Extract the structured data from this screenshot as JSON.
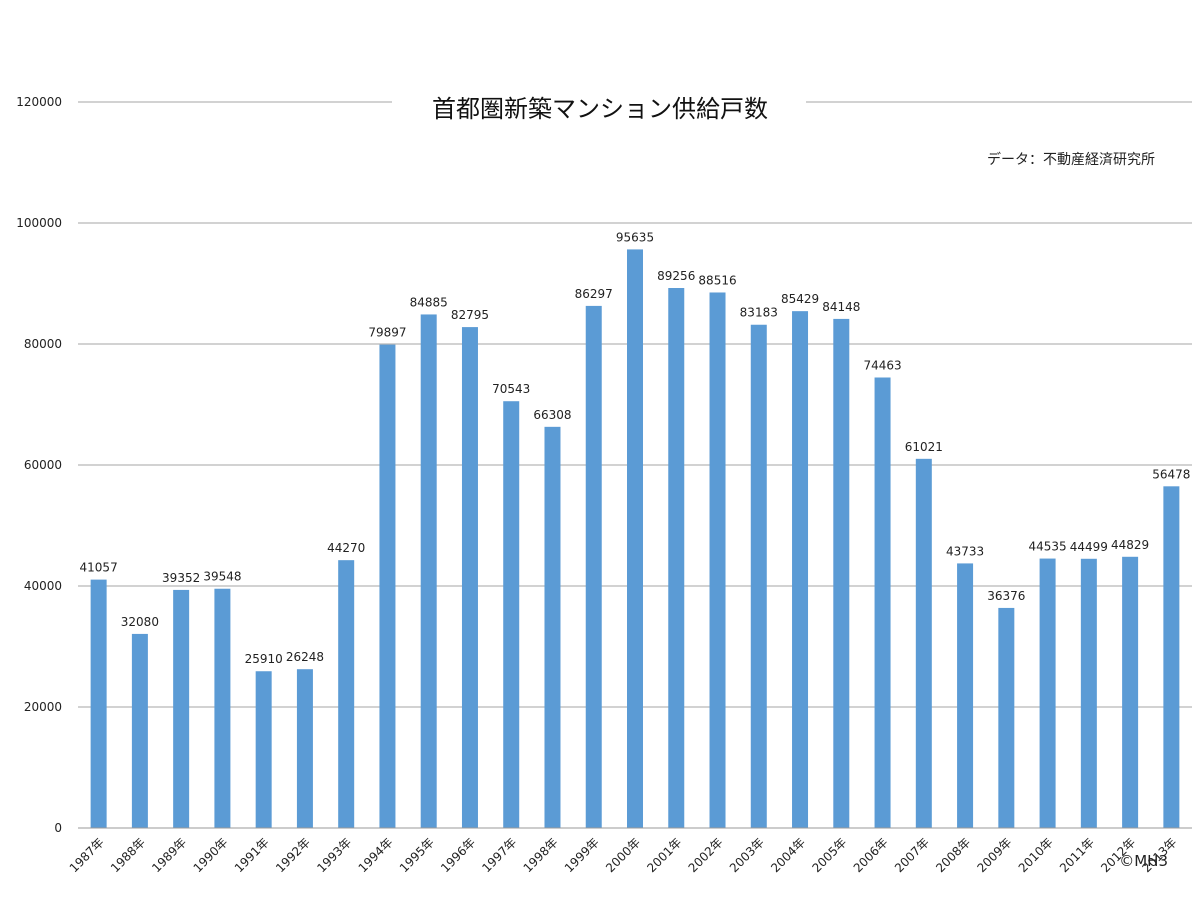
{
  "chart_data": {
    "type": "bar",
    "title": "首都圏新築マンション供給戸数",
    "source": "データ：不動産経済研究所",
    "copyright": "©MH3",
    "ylim": [
      0,
      120000
    ],
    "yticks": [
      "0",
      "20000",
      "40000",
      "60000",
      "80000",
      "100000",
      "120000"
    ],
    "grid": true,
    "bar_color": "#5b9bd5",
    "categories": [
      "1987年",
      "1988年",
      "1989年",
      "1990年",
      "1991年",
      "1992年",
      "1993年",
      "1994年",
      "1995年",
      "1996年",
      "1997年",
      "1998年",
      "1999年",
      "2000年",
      "2001年",
      "2002年",
      "2003年",
      "2004年",
      "2005年",
      "2006年",
      "2007年",
      "2008年",
      "2009年",
      "2010年",
      "2011年",
      "2012年",
      "2013年"
    ],
    "values": [
      41057,
      32080,
      39352,
      39548,
      25910,
      26248,
      44270,
      79897,
      84885,
      82795,
      70543,
      66308,
      86297,
      95635,
      89256,
      88516,
      83183,
      85429,
      84148,
      74463,
      61021,
      43733,
      36376,
      44535,
      44499,
      44829,
      56478
    ]
  }
}
